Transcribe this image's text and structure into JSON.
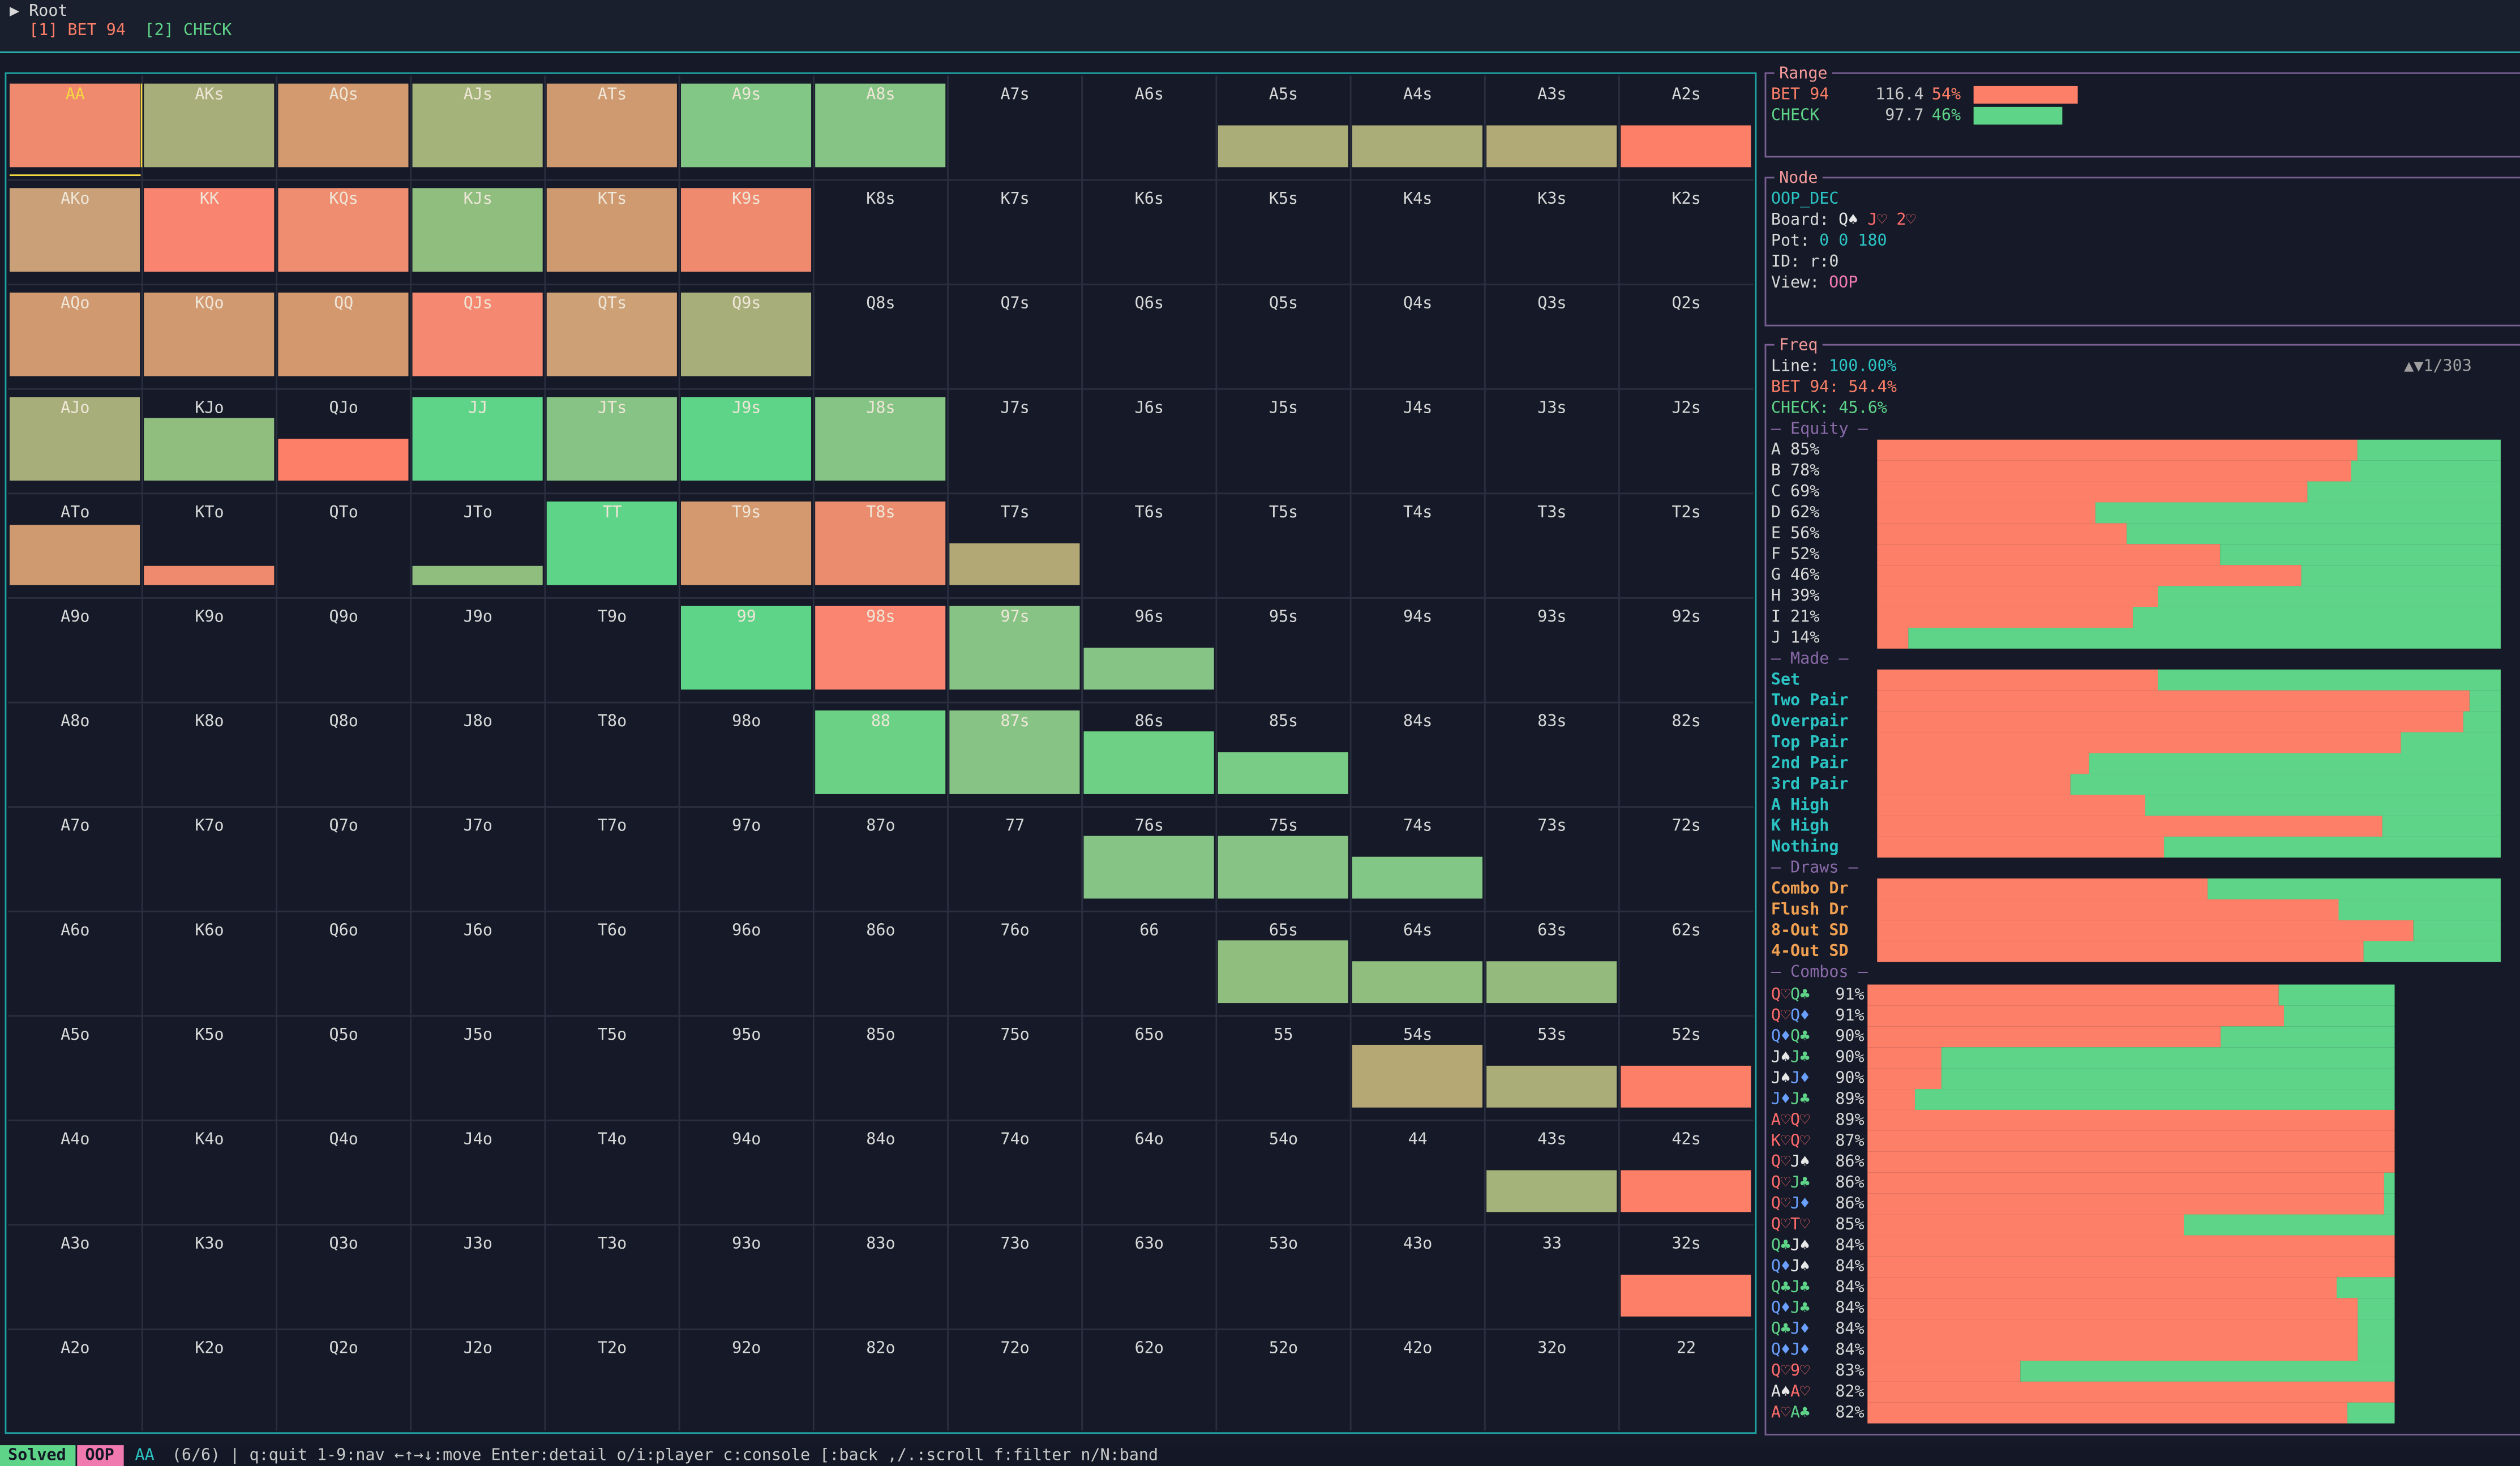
{
  "header": {
    "root": "▶ Root",
    "actions": [
      "[1] BET 94",
      "[2] CHECK"
    ]
  },
  "grid": {
    "labels": [
      [
        "AA",
        "AKs",
        "AQs",
        "AJs",
        "ATs",
        "A9s",
        "A8s",
        "A7s",
        "A6s",
        "A5s",
        "A4s",
        "A3s",
        "A2s"
      ],
      [
        "AKo",
        "KK",
        "KQs",
        "KJs",
        "KTs",
        "K9s",
        "K8s",
        "K7s",
        "K6s",
        "K5s",
        "K4s",
        "K3s",
        "K2s"
      ],
      [
        "AQo",
        "KQo",
        "QQ",
        "QJs",
        "QTs",
        "Q9s",
        "Q8s",
        "Q7s",
        "Q6s",
        "Q5s",
        "Q4s",
        "Q3s",
        "Q2s"
      ],
      [
        "AJo",
        "KJo",
        "QJo",
        "JJ",
        "JTs",
        "J9s",
        "J8s",
        "J7s",
        "J6s",
        "J5s",
        "J4s",
        "J3s",
        "J2s"
      ],
      [
        "ATo",
        "KTo",
        "QTo",
        "JTo",
        "TT",
        "T9s",
        "T8s",
        "T7s",
        "T6s",
        "T5s",
        "T4s",
        "T3s",
        "T2s"
      ],
      [
        "A9o",
        "K9o",
        "Q9o",
        "J9o",
        "T9o",
        "99",
        "98s",
        "97s",
        "96s",
        "95s",
        "94s",
        "93s",
        "92s"
      ],
      [
        "A8o",
        "K8o",
        "Q8o",
        "J8o",
        "T8o",
        "98o",
        "88",
        "87s",
        "86s",
        "85s",
        "84s",
        "83s",
        "82s"
      ],
      [
        "A7o",
        "K7o",
        "Q7o",
        "J7o",
        "T7o",
        "97o",
        "87o",
        "77",
        "76s",
        "75s",
        "74s",
        "73s",
        "72s"
      ],
      [
        "A6o",
        "K6o",
        "Q6o",
        "J6o",
        "T6o",
        "96o",
        "86o",
        "76o",
        "66",
        "65s",
        "64s",
        "63s",
        "62s"
      ],
      [
        "A5o",
        "K5o",
        "Q5o",
        "J5o",
        "T5o",
        "95o",
        "85o",
        "75o",
        "65o",
        "55",
        "54s",
        "53s",
        "52s"
      ],
      [
        "A4o",
        "K4o",
        "Q4o",
        "J4o",
        "T4o",
        "94o",
        "84o",
        "74o",
        "64o",
        "54o",
        "44",
        "43s",
        "42s"
      ],
      [
        "A3o",
        "K3o",
        "Q3o",
        "J3o",
        "T3o",
        "93o",
        "83o",
        "73o",
        "63o",
        "53o",
        "43o",
        "33",
        "32s"
      ],
      [
        "A2o",
        "K2o",
        "Q2o",
        "J2o",
        "T2o",
        "92o",
        "82o",
        "72o",
        "62o",
        "52o",
        "42o",
        "32o",
        "22"
      ]
    ],
    "weights": [
      [
        1,
        1,
        1,
        1,
        1,
        1,
        1,
        0,
        0,
        0.5,
        0.5,
        0.5,
        0.5
      ],
      [
        1,
        1,
        1,
        1,
        1,
        1,
        0,
        0,
        0,
        0,
        0,
        0,
        0
      ],
      [
        1,
        1,
        1,
        1,
        1,
        1,
        0,
        0,
        0,
        0,
        0,
        0,
        0
      ],
      [
        1,
        0.75,
        0.5,
        1,
        1,
        1,
        1,
        0,
        0,
        0,
        0,
        0,
        0
      ],
      [
        0.72,
        0.23,
        0,
        0.23,
        1,
        1,
        1,
        0.5,
        0,
        0,
        0,
        0,
        0
      ],
      [
        0,
        0,
        0,
        0,
        0,
        1,
        1,
        1,
        0.5,
        0,
        0,
        0,
        0
      ],
      [
        0,
        0,
        0,
        0,
        0,
        0,
        1,
        1,
        0.75,
        0.5,
        0,
        0,
        0
      ],
      [
        0,
        0,
        0,
        0,
        0,
        0,
        0,
        0,
        0.75,
        0.75,
        0.5,
        0,
        0
      ],
      [
        0,
        0,
        0,
        0,
        0,
        0,
        0,
        0,
        0,
        0.75,
        0.5,
        0.5,
        0
      ],
      [
        0,
        0,
        0,
        0,
        0,
        0,
        0,
        0,
        0,
        0,
        0.75,
        0.5,
        0.5
      ],
      [
        0,
        0,
        0,
        0,
        0,
        0,
        0,
        0,
        0,
        0,
        0,
        0.5,
        0.5
      ],
      [
        0,
        0,
        0,
        0,
        0,
        0,
        0,
        0,
        0,
        0,
        0,
        0,
        0.5
      ],
      [
        0,
        0,
        0,
        0,
        0,
        0,
        0,
        0,
        0,
        0,
        0,
        0,
        0
      ]
    ],
    "colors": [
      [
        "#ef8a6e",
        "#a8ae7a",
        "#d39a70",
        "#a3b37a",
        "#d09a70",
        "#82c785",
        "#85c485",
        null,
        null,
        "#aaad78",
        "#aaad78",
        "#b1aa76",
        "#fd7f67"
      ],
      [
        "#c9a077",
        "#f98570",
        "#ee8d6f",
        "#8fbe7f",
        "#cf9a70",
        "#ef8a6f",
        null,
        null,
        null,
        null,
        null,
        null,
        null
      ],
      [
        "#d0996f",
        "#d0996f",
        "#d4986f",
        "#f58870",
        "#cda076",
        "#a8ae7a",
        null,
        null,
        null,
        null,
        null,
        null,
        null
      ],
      [
        "#a8ae7a",
        "#8fbe7f",
        "#fd7f67",
        "#5ed488",
        "#86c384",
        "#5ed488",
        "#85c485",
        null,
        null,
        null,
        null,
        null,
        null
      ],
      [
        "#d09a70",
        "#f08a6e",
        null,
        "#8fbe7f",
        "#5ed488",
        "#d4996f",
        "#ec8c6f",
        "#b1a876",
        null,
        null,
        null,
        null,
        null
      ],
      [
        null,
        null,
        null,
        null,
        null,
        "#5ed488",
        "#fa8570",
        "#86c384",
        "#85c485",
        null,
        null,
        null,
        null
      ],
      [
        null,
        null,
        null,
        null,
        null,
        null,
        "#6ad185",
        "#86c384",
        "#6ed084",
        "#78cc85",
        null,
        null,
        null
      ],
      [
        null,
        null,
        null,
        null,
        null,
        null,
        null,
        null,
        "#85c485",
        "#86c384",
        "#82c785",
        null,
        null
      ],
      [
        null,
        null,
        null,
        null,
        null,
        null,
        null,
        null,
        null,
        "#8fbe7f",
        "#8fbe7f",
        "#95ba7d",
        null
      ],
      [
        null,
        null,
        null,
        null,
        null,
        null,
        null,
        null,
        null,
        null,
        "#b5a875",
        "#aaad78",
        "#fd7f67"
      ],
      [
        null,
        null,
        null,
        null,
        null,
        null,
        null,
        null,
        null,
        null,
        null,
        "#a3b37a",
        "#fd7f67"
      ],
      [
        null,
        null,
        null,
        null,
        null,
        null,
        null,
        null,
        null,
        null,
        null,
        null,
        "#fd7f67"
      ],
      [
        null,
        null,
        null,
        null,
        null,
        null,
        null,
        null,
        null,
        null,
        null,
        null,
        null
      ]
    ]
  },
  "range": {
    "title": "Range",
    "rows": [
      {
        "label": "BET 94",
        "amount": "116.4",
        "percent": 54,
        "percent_label": "54%",
        "color": "#fd7f67"
      },
      {
        "label": "CHECK",
        "amount": "97.7",
        "percent": 46,
        "percent_label": "46%",
        "color": "#5ed488"
      }
    ]
  },
  "node": {
    "title": "Node",
    "name": "OOP_DEC",
    "board_label": "Board:",
    "board": [
      "Q♠",
      "J♡",
      "2♡"
    ],
    "pot_label": "Pot:",
    "pot": "0 0 180",
    "id": "ID: r:0",
    "view_label": "View:",
    "view": "OOP"
  },
  "freq": {
    "title": "Freq",
    "line_label": "Line:",
    "line": "100.00%",
    "bet": "BET 94: 54.4%",
    "check": "CHECK: 45.6%",
    "pager": "▲▼1/303",
    "equity_title": "— Equity —",
    "equity": [
      {
        "label": "A 85%",
        "bet_share": 77
      },
      {
        "label": "B 78%",
        "bet_share": 76
      },
      {
        "label": "C 69%",
        "bet_share": 69
      },
      {
        "label": "D 62%",
        "bet_share": 35
      },
      {
        "label": "E 56%",
        "bet_share": 40
      },
      {
        "label": "F 52%",
        "bet_share": 55
      },
      {
        "label": "G 46%",
        "bet_share": 68
      },
      {
        "label": "H 39%",
        "bet_share": 45
      },
      {
        "label": "I 21%",
        "bet_share": 41
      },
      {
        "label": "J 14%",
        "bet_share": 5
      }
    ],
    "made_title": "— Made —",
    "made": [
      {
        "label": "Set",
        "bet_share": 45
      },
      {
        "label": "Two Pair",
        "bet_share": 95
      },
      {
        "label": "Overpair",
        "bet_share": 94
      },
      {
        "label": "Top Pair",
        "bet_share": 84
      },
      {
        "label": "2nd Pair",
        "bet_share": 34
      },
      {
        "label": "3rd Pair",
        "bet_share": 31
      },
      {
        "label": "A High",
        "bet_share": 43
      },
      {
        "label": "K High",
        "bet_share": 81
      },
      {
        "label": "Nothing",
        "bet_share": 46
      }
    ],
    "draws_title": "— Draws —",
    "draws": [
      {
        "label": "Combo Dr",
        "bet_share": 53
      },
      {
        "label": "Flush Dr",
        "bet_share": 74
      },
      {
        "label": "8-Out SD",
        "bet_share": 86
      },
      {
        "label": "4-Out SD",
        "bet_share": 78
      }
    ],
    "combos_title": "— Combos —",
    "combos": [
      {
        "cards": [
          "Q♡",
          "Q♣"
        ],
        "pct": "91%",
        "bet_share": 78
      },
      {
        "cards": [
          "Q♡",
          "Q♦"
        ],
        "pct": "91%",
        "bet_share": 79
      },
      {
        "cards": [
          "Q♦",
          "Q♣"
        ],
        "pct": "90%",
        "bet_share": 67
      },
      {
        "cards": [
          "J♠",
          "J♣"
        ],
        "pct": "90%",
        "bet_share": 14
      },
      {
        "cards": [
          "J♠",
          "J♦"
        ],
        "pct": "90%",
        "bet_share": 14
      },
      {
        "cards": [
          "J♦",
          "J♣"
        ],
        "pct": "89%",
        "bet_share": 9
      },
      {
        "cards": [
          "A♡",
          "Q♡"
        ],
        "pct": "89%",
        "bet_share": 100
      },
      {
        "cards": [
          "K♡",
          "Q♡"
        ],
        "pct": "87%",
        "bet_share": 100
      },
      {
        "cards": [
          "Q♡",
          "J♠"
        ],
        "pct": "86%",
        "bet_share": 100
      },
      {
        "cards": [
          "Q♡",
          "J♣"
        ],
        "pct": "86%",
        "bet_share": 98
      },
      {
        "cards": [
          "Q♡",
          "J♦"
        ],
        "pct": "86%",
        "bet_share": 98
      },
      {
        "cards": [
          "Q♡",
          "T♡"
        ],
        "pct": "85%",
        "bet_share": 60
      },
      {
        "cards": [
          "Q♣",
          "J♠"
        ],
        "pct": "84%",
        "bet_share": 100
      },
      {
        "cards": [
          "Q♦",
          "J♠"
        ],
        "pct": "84%",
        "bet_share": 100
      },
      {
        "cards": [
          "Q♣",
          "J♣"
        ],
        "pct": "84%",
        "bet_share": 89
      },
      {
        "cards": [
          "Q♦",
          "J♣"
        ],
        "pct": "84%",
        "bet_share": 93
      },
      {
        "cards": [
          "Q♣",
          "J♦"
        ],
        "pct": "84%",
        "bet_share": 93
      },
      {
        "cards": [
          "Q♦",
          "J♦"
        ],
        "pct": "84%",
        "bet_share": 93
      },
      {
        "cards": [
          "Q♡",
          "9♡"
        ],
        "pct": "83%",
        "bet_share": 29
      },
      {
        "cards": [
          "A♠",
          "A♡"
        ],
        "pct": "82%",
        "bet_share": 100
      },
      {
        "cards": [
          "A♡",
          "A♣"
        ],
        "pct": "82%",
        "bet_share": 91
      }
    ]
  },
  "footer": {
    "status": "Solved",
    "player": "OOP",
    "hand": "AA",
    "help": "(6/6) | q:quit 1-9:nav ←↑→↓:move Enter:detail o/i:player c:console [:back ,/.:scroll f:filter n/N:band"
  }
}
